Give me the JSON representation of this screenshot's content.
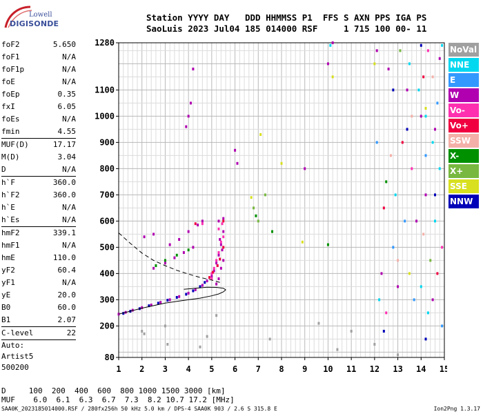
{
  "logo": {
    "top": "Lowell",
    "bottom": "DIGISONDE"
  },
  "header": {
    "line1": "Station YYYY DAY   DDD HHMMSS P1  FFS S AXN PPS IGA PS",
    "line2": "SaoLuis 2023 Jul04 185 014000 RSF     1 715 100 00- 11"
  },
  "params": [
    {
      "label": "foF2",
      "value": "5.650"
    },
    {
      "label": "foF1",
      "value": "N/A"
    },
    {
      "label": "foF1p",
      "value": "N/A"
    },
    {
      "label": "foE",
      "value": "N/A"
    },
    {
      "label": "foEp",
      "value": "0.35"
    },
    {
      "label": "fxI",
      "value": "6.05"
    },
    {
      "label": "foEs",
      "value": "N/A"
    },
    {
      "label": "fmin",
      "value": "4.55"
    },
    {
      "label": "MUF(D)",
      "value": "17.17"
    },
    {
      "label": "M(D)",
      "value": "3.04"
    },
    {
      "label": "D",
      "value": "N/A"
    },
    {
      "label": "h`F",
      "value": "360.0"
    },
    {
      "label": "h`F2",
      "value": "360.0"
    },
    {
      "label": "h`E",
      "value": "N/A"
    },
    {
      "label": "h`Es",
      "value": "N/A"
    },
    {
      "label": "hmF2",
      "value": "339.1"
    },
    {
      "label": "hmF1",
      "value": "N/A"
    },
    {
      "label": "hmE",
      "value": "110.0"
    },
    {
      "label": "yF2",
      "value": "60.4"
    },
    {
      "label": "yF1",
      "value": "N/A"
    },
    {
      "label": "yE",
      "value": "20.0"
    },
    {
      "label": "B0",
      "value": "60.0"
    },
    {
      "label": "B1",
      "value": "2.07"
    },
    {
      "label": "C-level",
      "value": "22"
    }
  ],
  "info": [
    "Auto:",
    "Artist5",
    "500200"
  ],
  "legend": [
    {
      "label": "NoVal",
      "color": "#a0a0a0"
    },
    {
      "label": "NNE",
      "color": "#00d8f0"
    },
    {
      "label": "E",
      "color": "#3399ff"
    },
    {
      "label": "W",
      "color": "#b000b0"
    },
    {
      "label": "Vo-",
      "color": "#ff30b0"
    },
    {
      "label": "Vo+",
      "color": "#f00040"
    },
    {
      "label": "SSW",
      "color": "#f4b0a8"
    },
    {
      "label": "X-",
      "color": "#009000"
    },
    {
      "label": "X+",
      "color": "#78b840"
    },
    {
      "label": "SSE",
      "color": "#d8e020"
    },
    {
      "label": "NNW",
      "color": "#0000b8"
    }
  ],
  "footer": {
    "d_row": "D     100  200  400  600  800 1000 1500 3000 [km]",
    "muf_row": "MUF    6.0  6.1  6.3  6.7  7.3  8.2 10.7 17.2 [MHz]",
    "file": "SAA0K_2023185014000.RSF / 280fx256h 50 kHz 5.0 km / DPS-4 SAA0K 903 / 2.6 S 315.8 E",
    "version": "Ion2Png 1.3.17"
  },
  "chart_data": {
    "type": "scatter",
    "title": "",
    "xlabel": "",
    "ylabel": "",
    "xlim": [
      1,
      15
    ],
    "ylim": [
      80,
      1280
    ],
    "xticks": [
      1,
      2,
      3,
      4,
      5,
      6,
      7,
      8,
      9,
      10,
      11,
      12,
      13,
      14,
      15
    ],
    "yticks": [
      80,
      200,
      300,
      400,
      500,
      600,
      700,
      800,
      900,
      1000,
      1100,
      1280
    ],
    "grid": true,
    "legend_position": "right",
    "series": [
      {
        "name": "W",
        "points": [
          [
            1.0,
            245
          ],
          [
            1.3,
            252
          ],
          [
            1.6,
            260
          ],
          [
            2.0,
            270
          ],
          [
            2.4,
            280
          ],
          [
            2.8,
            290
          ],
          [
            3.2,
            300
          ],
          [
            3.6,
            312
          ],
          [
            4.0,
            325
          ],
          [
            4.3,
            338
          ],
          [
            4.6,
            355
          ],
          [
            4.8,
            372
          ],
          [
            5.0,
            390
          ],
          [
            5.1,
            410
          ],
          [
            5.2,
            440
          ],
          [
            5.3,
            470
          ],
          [
            5.4,
            510
          ],
          [
            5.5,
            560
          ],
          [
            5.2,
            360
          ],
          [
            5.3,
            380
          ],
          [
            5.4,
            420
          ],
          [
            5.5,
            450
          ],
          [
            5.45,
            490
          ],
          [
            5.35,
            530
          ],
          [
            5.3,
            600
          ],
          [
            5.5,
            610
          ],
          [
            3.2,
            510
          ],
          [
            3.6,
            530
          ],
          [
            4.0,
            560
          ],
          [
            4.4,
            585
          ],
          [
            4.6,
            600
          ],
          [
            2.5,
            420
          ],
          [
            3.0,
            440
          ],
          [
            3.4,
            460
          ],
          [
            3.8,
            480
          ],
          [
            4.2,
            500
          ],
          [
            2.1,
            540
          ],
          [
            2.5,
            550
          ],
          [
            4.0,
            1000
          ],
          [
            4.1,
            1050
          ],
          [
            3.9,
            960
          ],
          [
            4.2,
            1180
          ],
          [
            6.0,
            870
          ],
          [
            6.1,
            820
          ],
          [
            9.0,
            800
          ],
          [
            10.0,
            1200
          ],
          [
            10.2,
            1280
          ],
          [
            12.1,
            1250
          ],
          [
            12.6,
            1180
          ],
          [
            13.4,
            1100
          ],
          [
            14.0,
            1000
          ],
          [
            14.6,
            950
          ],
          [
            14.8,
            1220
          ],
          [
            12.3,
            400
          ],
          [
            13.0,
            350
          ],
          [
            13.8,
            600
          ],
          [
            14.2,
            700
          ],
          [
            14.5,
            300
          ]
        ]
      },
      {
        "name": "Vo-",
        "points": [
          [
            5.0,
            400
          ],
          [
            5.1,
            420
          ],
          [
            5.2,
            450
          ],
          [
            5.3,
            480
          ],
          [
            5.4,
            520
          ],
          [
            5.5,
            540
          ],
          [
            5.3,
            570
          ],
          [
            5.45,
            590
          ],
          [
            4.6,
            590
          ],
          [
            5.0,
            380
          ],
          [
            14.3,
            1250
          ],
          [
            13.6,
            800
          ],
          [
            12.5,
            250
          ],
          [
            14.9,
            500
          ]
        ]
      },
      {
        "name": "Vo+",
        "points": [
          [
            4.9,
            385
          ],
          [
            5.05,
            405
          ],
          [
            5.25,
            430
          ],
          [
            5.35,
            455
          ],
          [
            5.5,
            500
          ],
          [
            5.5,
            600
          ],
          [
            4.3,
            590
          ],
          [
            14.1,
            1150
          ],
          [
            13.2,
            900
          ],
          [
            12.4,
            650
          ],
          [
            14.7,
            400
          ]
        ]
      },
      {
        "name": "NNE",
        "points": [
          [
            13.9,
            1100
          ],
          [
            14.2,
            1000
          ],
          [
            14.5,
            900
          ],
          [
            14.8,
            800
          ],
          [
            14.6,
            600
          ],
          [
            14.0,
            350
          ],
          [
            14.3,
            250
          ],
          [
            13.5,
            1200
          ],
          [
            12.9,
            700
          ],
          [
            12.2,
            300
          ],
          [
            14.9,
            1270
          ],
          [
            10.1,
            1270
          ]
        ]
      },
      {
        "name": "E",
        "points": [
          [
            12.8,
            500
          ],
          [
            13.3,
            600
          ],
          [
            14.2,
            850
          ],
          [
            14.7,
            1050
          ],
          [
            13.7,
            300
          ],
          [
            12.1,
            900
          ],
          [
            14.9,
            200
          ]
        ]
      },
      {
        "name": "SSW",
        "points": [
          [
            13.0,
            450
          ],
          [
            14.1,
            550
          ],
          [
            12.7,
            850
          ],
          [
            14.5,
            1150
          ],
          [
            13.6,
            1000
          ]
        ]
      },
      {
        "name": "X-",
        "points": [
          [
            2.6,
            430
          ],
          [
            3.0,
            450
          ],
          [
            3.5,
            470
          ],
          [
            4.0,
            490
          ],
          [
            6.9,
            620
          ],
          [
            7.6,
            560
          ],
          [
            10.0,
            510
          ],
          [
            12.5,
            750
          ]
        ]
      },
      {
        "name": "X+",
        "points": [
          [
            6.8,
            650
          ],
          [
            7.0,
            600
          ],
          [
            7.3,
            700
          ],
          [
            14.4,
            450
          ],
          [
            13.1,
            1250
          ]
        ]
      },
      {
        "name": "SSE",
        "points": [
          [
            6.7,
            690
          ],
          [
            7.1,
            930
          ],
          [
            8.0,
            820
          ],
          [
            8.9,
            520
          ],
          [
            10.2,
            1150
          ],
          [
            12.0,
            1200
          ],
          [
            13.5,
            400
          ],
          [
            14.2,
            1030
          ]
        ]
      },
      {
        "name": "NNW",
        "points": [
          [
            1.2,
            248
          ],
          [
            1.5,
            256
          ],
          [
            1.9,
            266
          ],
          [
            2.3,
            277
          ],
          [
            2.7,
            287
          ],
          [
            3.1,
            298
          ],
          [
            3.5,
            309
          ],
          [
            3.9,
            321
          ],
          [
            4.2,
            334
          ],
          [
            4.5,
            350
          ],
          [
            4.7,
            366
          ],
          [
            14.0,
            1270
          ],
          [
            13.4,
            950
          ],
          [
            12.8,
            1100
          ],
          [
            14.6,
            700
          ],
          [
            12.4,
            180
          ],
          [
            14.2,
            150
          ]
        ]
      },
      {
        "name": "NoVal",
        "points": [
          [
            2.0,
            180
          ],
          [
            2.1,
            170
          ],
          [
            3.0,
            200
          ],
          [
            3.1,
            130
          ],
          [
            4.8,
            160
          ],
          [
            4.5,
            120
          ],
          [
            5.2,
            240
          ],
          [
            7.5,
            150
          ],
          [
            9.6,
            210
          ],
          [
            10.4,
            110
          ],
          [
            11.0,
            180
          ],
          [
            12.0,
            130
          ],
          [
            13.0,
            90
          ]
        ]
      }
    ],
    "curves": [
      {
        "style": "solid",
        "points": [
          [
            1.0,
            245
          ],
          [
            2.0,
            268
          ],
          [
            3.0,
            287
          ],
          [
            4.0,
            300
          ],
          [
            4.5,
            306
          ],
          [
            5.0,
            315
          ],
          [
            5.3,
            322
          ],
          [
            5.5,
            330
          ],
          [
            5.6,
            338
          ],
          [
            5.5,
            344
          ],
          [
            5.2,
            347
          ],
          [
            4.8,
            348
          ],
          [
            4.3,
            344
          ],
          [
            3.8,
            340
          ]
        ]
      },
      {
        "style": "dashed",
        "points": [
          [
            1.0,
            555
          ],
          [
            1.5,
            515
          ],
          [
            2.0,
            478
          ],
          [
            2.5,
            450
          ],
          [
            3.0,
            430
          ],
          [
            3.5,
            412
          ],
          [
            4.0,
            398
          ],
          [
            4.5,
            385
          ],
          [
            5.0,
            375
          ],
          [
            5.4,
            365
          ]
        ]
      }
    ]
  }
}
